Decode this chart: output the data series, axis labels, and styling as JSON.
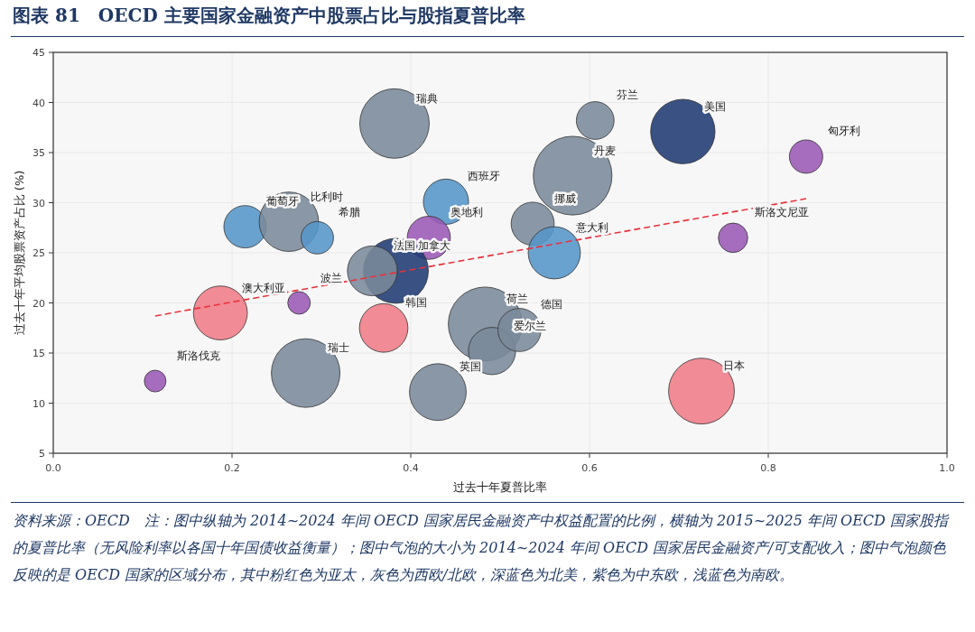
{
  "chart_data": {
    "type": "bubble",
    "title": "图表 81　OECD 主要国家金融资产中股票占比与股指夏普比率",
    "xlabel": "过去十年夏普比率",
    "ylabel": "过去十年平均股票资产占比 (%)",
    "xlim": [
      0,
      1
    ],
    "xticks": [
      {
        "value": 0,
        "label": "0.0"
      },
      {
        "value": 0.2,
        "label": "0.2"
      },
      {
        "value": 0.4,
        "label": "0.4"
      },
      {
        "value": 0.6,
        "label": "0.6"
      },
      {
        "value": 0.8,
        "label": "0.8"
      },
      {
        "value": 1,
        "label": "1.0"
      }
    ],
    "ylim": [
      5,
      45
    ],
    "yticks": [
      5,
      10,
      15,
      20,
      25,
      30,
      35,
      40,
      45
    ],
    "grid": true,
    "line_style": "dashed",
    "series": [
      {
        "x": [
          0.114,
          0.187,
          0.275,
          0.2146,
          0.2636,
          0.2954,
          0.3818,
          0.4394,
          0.4202,
          0.3834,
          0.357,
          0.3697,
          0.2824,
          0.4303,
          0.4833,
          0.4909,
          0.5216,
          0.5364,
          0.5811,
          0.6064,
          0.5606,
          0.7044,
          0.8423,
          0.7606,
          0.7253
        ],
        "values": [
          12.2,
          19.0,
          20.0,
          27.6,
          28.1,
          26.5,
          37.9,
          30.1,
          26.5,
          23.2,
          23.2,
          17.5,
          13.0,
          11.1,
          17.9,
          15.2,
          17.3,
          27.9,
          32.7,
          38.2,
          25.0,
          37.1,
          34.6,
          26.5,
          11.2
        ],
        "sizes": [
          0.076,
          0.47,
          0.082,
          0.29,
          0.57,
          0.17,
          0.78,
          0.33,
          0.3,
          0.68,
          0.4,
          0.38,
          0.76,
          0.52,
          0.88,
          0.36,
          0.3,
          0.3,
          1,
          0.23,
          0.44,
          0.67,
          0.18,
          0.14,
          0.7
        ],
        "colors": [
          "#9b59b6",
          "#f07c88",
          "#9b59b6",
          "#5596c9",
          "#7a8a9b",
          "#5596c9",
          "#7a8a9b",
          "#5596c9",
          "#9b59b6",
          "#1f3a73",
          "#7a8a9b",
          "#f07c88",
          "#7a8a9b",
          "#7a8a9b",
          "#7a8a9b",
          "#7a8a9b",
          "#7a8a9b",
          "#7a8a9b",
          "#7a8a9b",
          "#7a8a9b",
          "#5596c9",
          "#1f3a73",
          "#9b59b6",
          "#9b59b6",
          "#f07c88"
        ]
      },
      {
        "type": "line",
        "x": [
          0.114,
          0.8424
        ],
        "values": [
          18.7,
          30.4
        ],
        "color": "#e8323c"
      }
    ],
    "annotations": [
      {
        "text": "斯洛伐克",
        "x": 0.114,
        "y": 12.2
      },
      {
        "text": "澳大利亚",
        "x": 0.187,
        "y": 19.0
      },
      {
        "text": "波兰",
        "x": 0.275,
        "y": 20.0
      },
      {
        "text": "葡萄牙",
        "x": 0.2146,
        "y": 27.6
      },
      {
        "text": "比利时",
        "x": 0.2636,
        "y": 28.1
      },
      {
        "text": "希腊",
        "x": 0.2954,
        "y": 26.5
      },
      {
        "text": "瑞典",
        "x": 0.3818,
        "y": 37.9
      },
      {
        "text": "西班牙",
        "x": 0.4394,
        "y": 30.1
      },
      {
        "text": "奥地利",
        "x": 0.4202,
        "y": 26.5
      },
      {
        "text": "加拿大",
        "x": 0.3834,
        "y": 23.2
      },
      {
        "text": "法国",
        "x": 0.357,
        "y": 23.2
      },
      {
        "text": "韩国",
        "x": 0.3697,
        "y": 17.5
      },
      {
        "text": "瑞士",
        "x": 0.2824,
        "y": 13.0
      },
      {
        "text": "英国",
        "x": 0.4303,
        "y": 11.1
      },
      {
        "text": "荷兰",
        "x": 0.4833,
        "y": 17.9
      },
      {
        "text": "爱尔兰",
        "x": 0.4909,
        "y": 15.2
      },
      {
        "text": "德国",
        "x": 0.5216,
        "y": 17.3
      },
      {
        "text": "挪威",
        "x": 0.5364,
        "y": 27.9
      },
      {
        "text": "丹麦",
        "x": 0.5811,
        "y": 32.7
      },
      {
        "text": "芬兰",
        "x": 0.6064,
        "y": 38.2
      },
      {
        "text": "意大利",
        "x": 0.5606,
        "y": 25.0
      },
      {
        "text": "美国",
        "x": 0.7044,
        "y": 37.1
      },
      {
        "text": "匈牙利",
        "x": 0.8423,
        "y": 34.6
      },
      {
        "text": "斯洛文尼亚",
        "x": 0.7606,
        "y": 26.5
      },
      {
        "text": "日本",
        "x": 0.7253,
        "y": 11.2
      },
      "资料来源：OECD　注：图中纵轴为 2014~2024 年间 OECD 国家居民金融资产中权益配置的比例，横轴为 2015~2025 年间 OECD 国家股指的夏普比率（无风险利率以各国十年国债收益衡量）；图中气泡的大小为 2014~2024 年间 OECD 国家居民金融资产/可支配收入；图中气泡颜色反映的是 OECD 国家的区域分布，其中粉红色为亚太，灰色为西欧/北欧，深蓝色为北美，紫色为中东欧，浅蓝色为南欧。"
    ]
  }
}
